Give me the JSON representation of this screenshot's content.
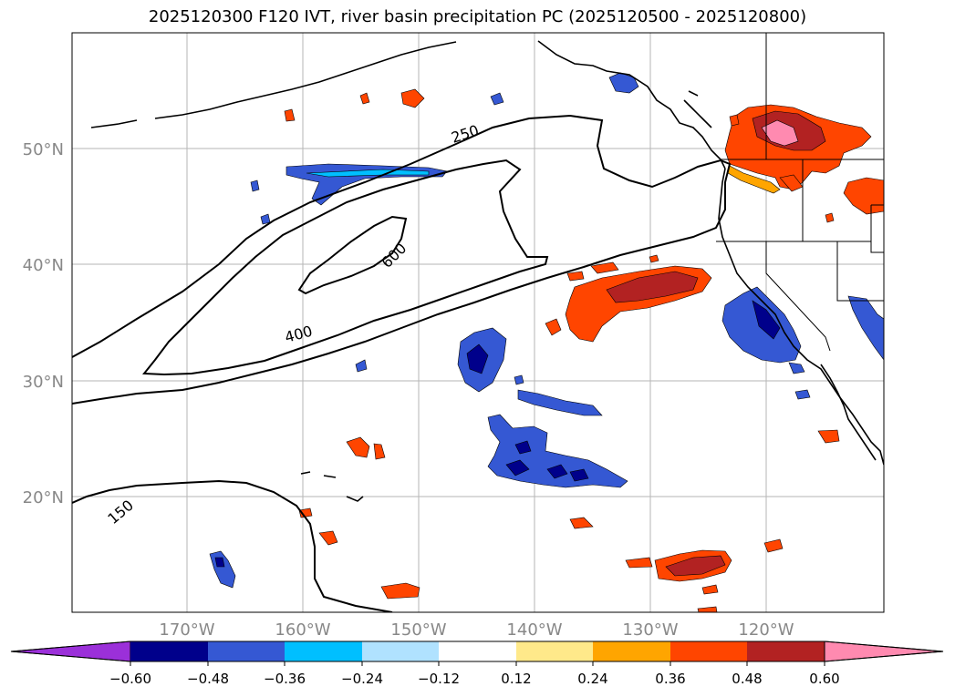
{
  "title": "2025120300 F120 IVT, river basin precipitation PC (2025120500 - 2025120800)",
  "map": {
    "lat_labels": [
      "50°N",
      "40°N",
      "30°N",
      "20°N"
    ],
    "lon_labels": [
      "170°W",
      "160°W",
      "150°W",
      "140°W",
      "130°W",
      "120°W"
    ],
    "ivt_contour_labels": [
      "250",
      "600",
      "400",
      "150"
    ]
  },
  "colorbar": {
    "ticks": [
      "−0.60",
      "−0.48",
      "−0.36",
      "−0.24",
      "−0.12",
      "0.12",
      "0.24",
      "0.36",
      "0.48",
      "0.60"
    ],
    "colors": [
      "#9b30d9",
      "#00008b",
      "#3558d3",
      "#00bfff",
      "#b0e2ff",
      "#ffffff",
      "#ffe98a",
      "#ffa500",
      "#ff4500",
      "#b22222",
      "#ff8ab0"
    ]
  }
}
